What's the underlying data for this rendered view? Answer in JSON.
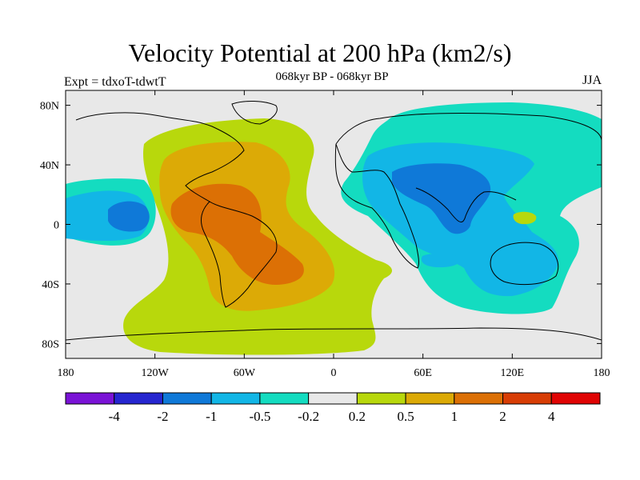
{
  "title": "Velocity Potential at 200 hPa (km2/s)",
  "subtitle": "068kyr BP - 068kyr BP",
  "left_label": "Expt = tdxoT-tdwtT",
  "right_label": "JJA",
  "map": {
    "lon_range": [
      -180,
      180
    ],
    "lat_range": [
      -90,
      90
    ],
    "lat_ticks": [
      {
        "value": 80,
        "label": "80N"
      },
      {
        "value": 40,
        "label": "40N"
      },
      {
        "value": 0,
        "label": "0"
      },
      {
        "value": -40,
        "label": "40S"
      },
      {
        "value": -80,
        "label": "80S"
      }
    ],
    "lon_ticks": [
      {
        "value": -180,
        "label": "180"
      },
      {
        "value": -120,
        "label": "120W"
      },
      {
        "value": -60,
        "label": "60W"
      },
      {
        "value": 0,
        "label": "0"
      },
      {
        "value": 60,
        "label": "60E"
      },
      {
        "value": 120,
        "label": "120E"
      },
      {
        "value": 180,
        "label": "180"
      }
    ]
  },
  "colorbar": {
    "colors": [
      "#7a13d6",
      "#2626d0",
      "#0f79d8",
      "#12b6e6",
      "#14dcc0",
      "#e8e8e8",
      "#b8d80c",
      "#dcaa06",
      "#dc7005",
      "#d83d05",
      "#e00404"
    ],
    "labels": [
      "-4",
      "-2",
      "-1",
      "-0.5",
      "-0.2",
      "0.2",
      "0.5",
      "1",
      "2",
      "4"
    ]
  },
  "colors": {
    "background": "#e8e8e8",
    "pos_0_2": "#b8d80c",
    "pos_0_5": "#dcaa06",
    "pos_1": "#dc7005",
    "neg_0_2": "#14dcc0",
    "neg_0_5": "#12b6e6",
    "neg_1": "#0f79d8"
  }
}
